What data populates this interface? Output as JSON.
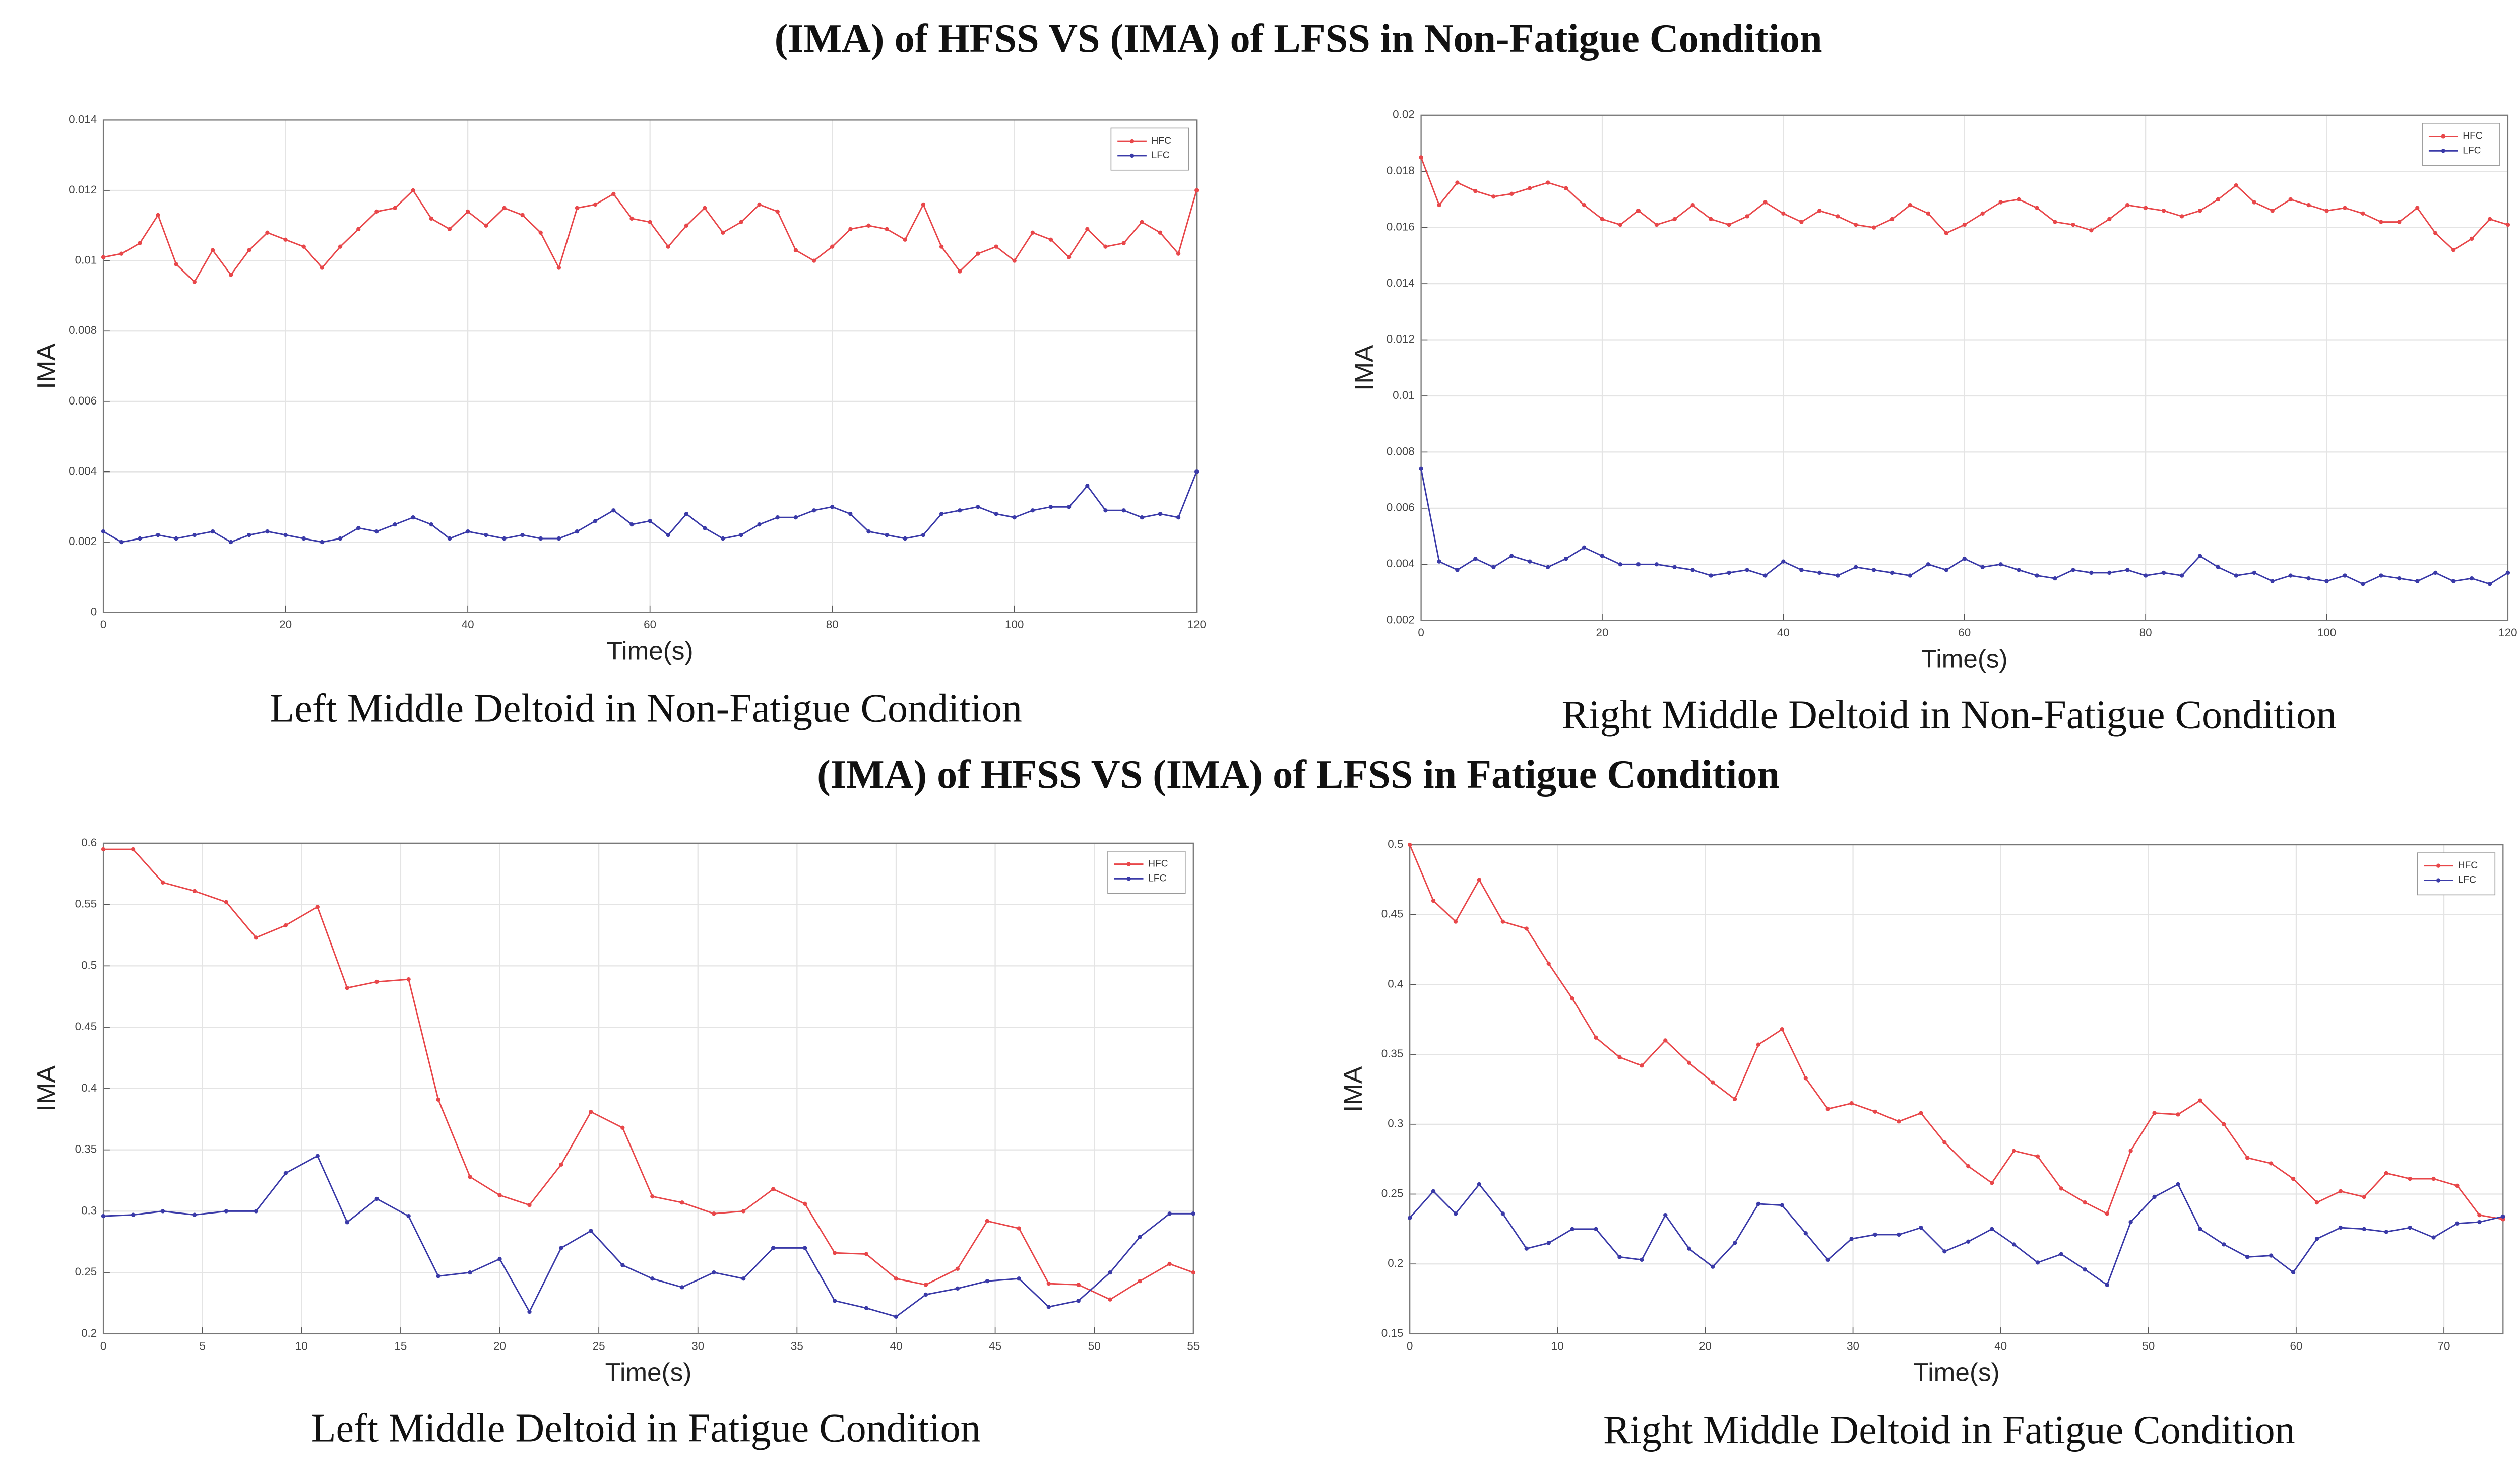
{
  "headings": [
    "(IMA) of HFSS VS (IMA) of LFSS in Non-Fatigue Condition",
    "(IMA) of HFSS VS (IMA) of LFSS in Fatigue Condition"
  ],
  "chart_data": [
    {
      "type": "line",
      "caption": "Left Middle Deltoid in Non-Fatigue Condition",
      "xlabel": "Time(s)",
      "ylabel": "IMA",
      "grid": true,
      "legend": "upper right",
      "x": [
        0,
        2,
        4,
        6,
        8,
        10,
        12,
        14,
        16,
        18,
        20,
        22,
        24,
        26,
        28,
        30,
        32,
        34,
        36,
        38,
        40,
        42,
        44,
        46,
        48,
        50,
        52,
        54,
        56,
        58,
        60,
        62,
        64,
        66,
        68,
        70,
        72,
        74,
        76,
        78,
        80,
        82,
        84,
        86,
        88,
        90,
        92,
        94,
        96,
        98,
        100,
        102,
        104,
        106,
        108,
        110,
        112,
        114,
        116,
        118,
        120
      ],
      "series": [
        {
          "name": "HFC",
          "color": "#e8474a",
          "values": [
            0.0101,
            0.0102,
            0.0105,
            0.0113,
            0.0099,
            0.0094,
            0.0103,
            0.0096,
            0.0103,
            0.0108,
            0.0106,
            0.0104,
            0.0098,
            0.0104,
            0.0109,
            0.0114,
            0.0115,
            0.012,
            0.0112,
            0.0109,
            0.0114,
            0.011,
            0.0115,
            0.0113,
            0.0108,
            0.0098,
            0.0115,
            0.0116,
            0.0119,
            0.0112,
            0.0111,
            0.0104,
            0.011,
            0.0115,
            0.0108,
            0.0111,
            0.0116,
            0.0114,
            0.0103,
            0.01,
            0.0104,
            0.0109,
            0.011,
            0.0109,
            0.0106,
            0.0116,
            0.0104,
            0.0097,
            0.0102,
            0.0104,
            0.01,
            0.0108,
            0.0106,
            0.0101,
            0.0109,
            0.0104,
            0.0105,
            0.0111,
            0.0108,
            0.0102,
            0.012
          ]
        },
        {
          "name": "LFC",
          "color": "#3a3aa8",
          "values": [
            0.0023,
            0.002,
            0.0021,
            0.0022,
            0.0021,
            0.0022,
            0.0023,
            0.002,
            0.0022,
            0.0023,
            0.0022,
            0.0021,
            0.002,
            0.0021,
            0.0024,
            0.0023,
            0.0025,
            0.0027,
            0.0025,
            0.0021,
            0.0023,
            0.0022,
            0.0021,
            0.0022,
            0.0021,
            0.0021,
            0.0023,
            0.0026,
            0.0029,
            0.0025,
            0.0026,
            0.0022,
            0.0028,
            0.0024,
            0.0021,
            0.0022,
            0.0025,
            0.0027,
            0.0027,
            0.0029,
            0.003,
            0.0028,
            0.0023,
            0.0022,
            0.0021,
            0.0022,
            0.0028,
            0.0029,
            0.003,
            0.0028,
            0.0027,
            0.0029,
            0.003,
            0.003,
            0.0036,
            0.0029,
            0.0029,
            0.0027,
            0.0028,
            0.0027,
            0.004
          ]
        }
      ],
      "xlim": [
        0,
        120
      ],
      "xticks": [
        0,
        20,
        40,
        60,
        80,
        100,
        120
      ],
      "ylim": [
        0,
        0.014
      ],
      "yticks": [
        0,
        0.002,
        0.004,
        0.006,
        0.008,
        0.01,
        0.012,
        0.014
      ]
    },
    {
      "type": "line",
      "caption": "Right Middle Deltoid in Non-Fatigue Condition",
      "xlabel": "Time(s)",
      "ylabel": "IMA",
      "grid": true,
      "legend": "upper right",
      "x": [
        0,
        2,
        4,
        6,
        8,
        10,
        12,
        14,
        16,
        18,
        20,
        22,
        24,
        26,
        28,
        30,
        32,
        34,
        36,
        38,
        40,
        42,
        44,
        46,
        48,
        50,
        52,
        54,
        56,
        58,
        60,
        62,
        64,
        66,
        68,
        70,
        72,
        74,
        76,
        78,
        80,
        82,
        84,
        86,
        88,
        90,
        92,
        94,
        96,
        98,
        100,
        102,
        104,
        106,
        108,
        110,
        112,
        114,
        116,
        118,
        120
      ],
      "series": [
        {
          "name": "HFC",
          "color": "#e8474a",
          "values": [
            0.0185,
            0.0168,
            0.0176,
            0.0173,
            0.0171,
            0.0172,
            0.0174,
            0.0176,
            0.0174,
            0.0168,
            0.0163,
            0.0161,
            0.0166,
            0.0161,
            0.0163,
            0.0168,
            0.0163,
            0.0161,
            0.0164,
            0.0169,
            0.0165,
            0.0162,
            0.0166,
            0.0164,
            0.0161,
            0.016,
            0.0163,
            0.0168,
            0.0165,
            0.0158,
            0.0161,
            0.0165,
            0.0169,
            0.017,
            0.0167,
            0.0162,
            0.0161,
            0.0159,
            0.0163,
            0.0168,
            0.0167,
            0.0166,
            0.0164,
            0.0166,
            0.017,
            0.0175,
            0.0169,
            0.0166,
            0.017,
            0.0168,
            0.0166,
            0.0167,
            0.0165,
            0.0162,
            0.0162,
            0.0167,
            0.0158,
            0.0152,
            0.0156,
            0.0163,
            0.0161
          ]
        },
        {
          "name": "LFC",
          "color": "#3a3aa8",
          "values": [
            0.0074,
            0.0041,
            0.0038,
            0.0042,
            0.0039,
            0.0043,
            0.0041,
            0.0039,
            0.0042,
            0.0046,
            0.0043,
            0.004,
            0.004,
            0.004,
            0.0039,
            0.0038,
            0.0036,
            0.0037,
            0.0038,
            0.0036,
            0.0041,
            0.0038,
            0.0037,
            0.0036,
            0.0039,
            0.0038,
            0.0037,
            0.0036,
            0.004,
            0.0038,
            0.0042,
            0.0039,
            0.004,
            0.0038,
            0.0036,
            0.0035,
            0.0038,
            0.0037,
            0.0037,
            0.0038,
            0.0036,
            0.0037,
            0.0036,
            0.0043,
            0.0039,
            0.0036,
            0.0037,
            0.0034,
            0.0036,
            0.0035,
            0.0034,
            0.0036,
            0.0033,
            0.0036,
            0.0035,
            0.0034,
            0.0037,
            0.0034,
            0.0035,
            0.0033,
            0.0037
          ]
        }
      ],
      "xlim": [
        0,
        120
      ],
      "xticks": [
        0,
        20,
        40,
        60,
        80,
        100,
        120
      ],
      "ylim": [
        0.002,
        0.02
      ],
      "yticks": [
        0.002,
        0.004,
        0.006,
        0.008,
        0.01,
        0.012,
        0.014,
        0.016,
        0.018,
        0.02
      ]
    },
    {
      "type": "line",
      "caption": "Left Middle Deltoid in Fatigue Condition",
      "xlabel": "Time(s)",
      "ylabel": "IMA",
      "grid": true,
      "legend": "upper right",
      "x": [
        0,
        1.5,
        3,
        4.6,
        6.2,
        7.7,
        9.2,
        10.8,
        12.3,
        13.8,
        15.4,
        16.9,
        18.5,
        20,
        21.5,
        23.1,
        24.6,
        26.2,
        27.7,
        29.2,
        30.8,
        32.3,
        33.8,
        35.4,
        36.9,
        38.5,
        40,
        41.5,
        43.1,
        44.6,
        46.2,
        47.7,
        49.2,
        50.8,
        52.3,
        53.8,
        55
      ],
      "series": [
        {
          "name": "HFC",
          "color": "#e8474a",
          "values": [
            0.595,
            0.595,
            0.568,
            0.561,
            0.552,
            0.523,
            0.533,
            0.548,
            0.482,
            0.487,
            0.489,
            0.391,
            0.328,
            0.313,
            0.305,
            0.338,
            0.381,
            0.368,
            0.312,
            0.307,
            0.298,
            0.3,
            0.318,
            0.306,
            0.266,
            0.265,
            0.245,
            0.24,
            0.253,
            0.292,
            0.286,
            0.241,
            0.24,
            0.228,
            0.243,
            0.257,
            0.25
          ]
        },
        {
          "name": "LFC",
          "color": "#3a3aa8",
          "values": [
            0.296,
            0.297,
            0.3,
            0.297,
            0.3,
            0.3,
            0.331,
            0.345,
            0.291,
            0.31,
            0.296,
            0.247,
            0.25,
            0.261,
            0.218,
            0.27,
            0.284,
            0.256,
            0.245,
            0.238,
            0.25,
            0.245,
            0.27,
            0.27,
            0.227,
            0.221,
            0.214,
            0.232,
            0.237,
            0.243,
            0.245,
            0.222,
            0.227,
            0.25,
            0.279,
            0.298,
            0.298
          ]
        }
      ],
      "xlim": [
        0,
        55
      ],
      "xticks": [
        0,
        5,
        10,
        15,
        20,
        25,
        30,
        35,
        40,
        45,
        50,
        55
      ],
      "ylim": [
        0.2,
        0.6
      ],
      "yticks": [
        0.2,
        0.25,
        0.3,
        0.35,
        0.4,
        0.45,
        0.5,
        0.55,
        0.6
      ]
    },
    {
      "type": "line",
      "caption": "Right Middle Deltoid in Fatigue Condition",
      "xlabel": "Time(s)",
      "ylabel": "IMA",
      "grid": true,
      "legend": "upper right",
      "x": [
        0,
        1.6,
        3.1,
        4.7,
        6.3,
        7.9,
        9.4,
        11,
        12.6,
        14.2,
        15.7,
        17.3,
        18.9,
        20.5,
        22,
        23.6,
        25.2,
        26.8,
        28.3,
        29.9,
        31.5,
        33.1,
        34.6,
        36.2,
        37.8,
        39.4,
        40.9,
        42.5,
        44.1,
        45.7,
        47.2,
        48.8,
        50.4,
        52,
        53.5,
        55.1,
        56.7,
        58.3,
        59.8,
        61.4,
        63,
        64.6,
        66.1,
        67.7,
        69.3,
        70.9,
        72.4,
        74
      ],
      "series": [
        {
          "name": "HFC",
          "color": "#e8474a",
          "values": [
            0.5,
            0.46,
            0.445,
            0.475,
            0.445,
            0.44,
            0.415,
            0.39,
            0.362,
            0.348,
            0.342,
            0.36,
            0.344,
            0.33,
            0.318,
            0.357,
            0.368,
            0.333,
            0.311,
            0.315,
            0.309,
            0.302,
            0.308,
            0.287,
            0.27,
            0.258,
            0.281,
            0.277,
            0.254,
            0.244,
            0.236,
            0.281,
            0.308,
            0.307,
            0.317,
            0.3,
            0.276,
            0.272,
            0.261,
            0.244,
            0.252,
            0.248,
            0.265,
            0.261,
            0.261,
            0.256,
            0.235,
            0.232
          ]
        },
        {
          "name": "LFC",
          "color": "#3a3aa8",
          "values": [
            0.233,
            0.252,
            0.236,
            0.257,
            0.236,
            0.211,
            0.215,
            0.225,
            0.225,
            0.205,
            0.203,
            0.235,
            0.211,
            0.198,
            0.215,
            0.243,
            0.242,
            0.222,
            0.203,
            0.218,
            0.221,
            0.221,
            0.226,
            0.209,
            0.216,
            0.225,
            0.214,
            0.201,
            0.207,
            0.196,
            0.185,
            0.23,
            0.248,
            0.257,
            0.225,
            0.214,
            0.205,
            0.206,
            0.194,
            0.218,
            0.226,
            0.225,
            0.223,
            0.226,
            0.219,
            0.229,
            0.23,
            0.234
          ]
        }
      ],
      "xlim": [
        0,
        74
      ],
      "xticks": [
        0,
        10,
        20,
        30,
        40,
        50,
        60,
        70
      ],
      "ylim": [
        0.15,
        0.5
      ],
      "yticks": [
        0.15,
        0.2,
        0.25,
        0.3,
        0.35,
        0.4,
        0.45,
        0.5
      ]
    }
  ]
}
